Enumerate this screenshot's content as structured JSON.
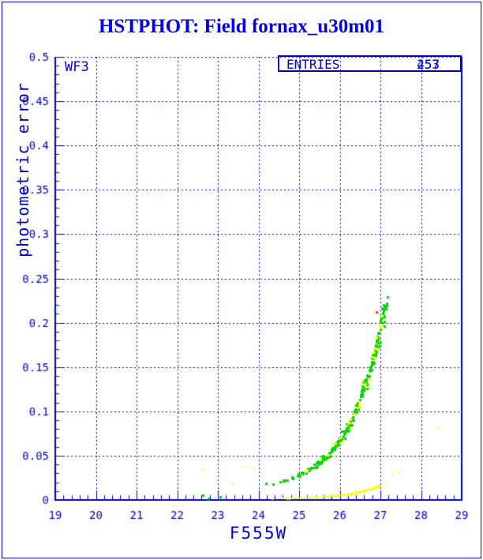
{
  "window": {
    "background": "#ffffff",
    "border_color": "#0000cc"
  },
  "title": {
    "text": "HSTPHOT: Field fornax_u30m01",
    "color": "#0000ee"
  },
  "annotations": {
    "detector_label": "WF3",
    "entries_label": "ENTRIES",
    "entries_values": [
      "253",
      "457"
    ]
  },
  "chart_data": {
    "type": "scatter",
    "title": "HSTPHOT: Field fornax_u30m01",
    "xlabel": "F555W",
    "ylabel": "photometric error",
    "xlim": [
      19,
      29
    ],
    "ylim": [
      0,
      0.5
    ],
    "x_ticks": {
      "values": [
        19,
        20,
        21,
        22,
        23,
        24,
        25,
        26,
        27,
        28,
        29
      ],
      "labels": [
        "19",
        "20",
        "21",
        "22",
        "23",
        "24",
        "25",
        "26",
        "27",
        "28",
        "29"
      ]
    },
    "y_ticks": {
      "values": [
        0,
        0.05,
        0.1,
        0.15,
        0.2,
        0.25,
        0.3,
        0.35,
        0.4,
        0.45,
        0.5
      ],
      "labels": [
        "0",
        "0.05",
        "0.1",
        "0.15",
        "0.2",
        "0.25",
        "0.3",
        "0.35",
        "0.4",
        "0.45",
        "0.5"
      ]
    },
    "x_minor_step": 0.2,
    "y_minor_step": 0.01,
    "grid": {
      "style": "dashed",
      "color": "#0000cc"
    },
    "axis_color": "#0000cc",
    "tick_label_color": "#0000dd",
    "series": [
      {
        "name": "wf3-error-band-green",
        "color": "#00d800",
        "marker_px": 3,
        "count": 220,
        "x_range": [
          24.15,
          27.15
        ],
        "density_exp": 0.45,
        "rel_spread": 0.11,
        "x_jitter": 0.05,
        "trend": [
          [
            24.15,
            0.017
          ],
          [
            24.5,
            0.02
          ],
          [
            24.9,
            0.026
          ],
          [
            25.3,
            0.036
          ],
          [
            25.7,
            0.05
          ],
          [
            26.0,
            0.068
          ],
          [
            26.2,
            0.082
          ],
          [
            26.4,
            0.102
          ],
          [
            26.6,
            0.126
          ],
          [
            26.8,
            0.154
          ],
          [
            26.95,
            0.183
          ],
          [
            27.05,
            0.203
          ],
          [
            27.15,
            0.22
          ]
        ],
        "outliers": [
          [
            22.64,
            0.005
          ],
          [
            22.77,
            0.002
          ],
          [
            23.06,
            0.004
          ]
        ]
      },
      {
        "name": "noise-floor-yellow",
        "color": "#ffff00",
        "marker_px": 2,
        "count": 120,
        "x_range": [
          24.3,
          27.0
        ],
        "density_exp": 0.55,
        "rel_spread": 0.12,
        "abs_spread": 0.0012,
        "x_jitter": 0.04,
        "trend": [
          [
            24.3,
            0.0012
          ],
          [
            25.0,
            0.002
          ],
          [
            25.5,
            0.003
          ],
          [
            26.0,
            0.0048
          ],
          [
            26.3,
            0.007
          ],
          [
            26.6,
            0.0105
          ],
          [
            26.8,
            0.013
          ],
          [
            27.0,
            0.016
          ]
        ],
        "outliers": [
          [
            22.62,
            0.035
          ],
          [
            23.34,
            0.018
          ],
          [
            23.6,
            0.037
          ],
          [
            23.87,
            0.036
          ],
          [
            27.3,
            0.029
          ],
          [
            27.45,
            0.03
          ],
          [
            28.44,
            0.081
          ]
        ]
      },
      {
        "name": "in-band-yellow",
        "color": "#ffff00",
        "marker_px": 3,
        "count": 30,
        "x_range": [
          25.2,
          27.05
        ],
        "density_exp": 0.5,
        "rel_spread": 0.16,
        "x_jitter": 0.05,
        "trend": [
          [
            25.2,
            0.034
          ],
          [
            25.7,
            0.05
          ],
          [
            26.0,
            0.068
          ],
          [
            26.2,
            0.082
          ],
          [
            26.4,
            0.102
          ],
          [
            26.6,
            0.126
          ],
          [
            26.8,
            0.154
          ],
          [
            26.95,
            0.183
          ],
          [
            27.05,
            0.203
          ]
        ],
        "outliers": []
      },
      {
        "name": "flagged-red",
        "color": "#ff4400",
        "marker_px": 3,
        "count": 0,
        "x_range": [
          0,
          0
        ],
        "trend": [],
        "outliers": [
          [
            26.9,
            0.212
          ]
        ]
      }
    ]
  }
}
